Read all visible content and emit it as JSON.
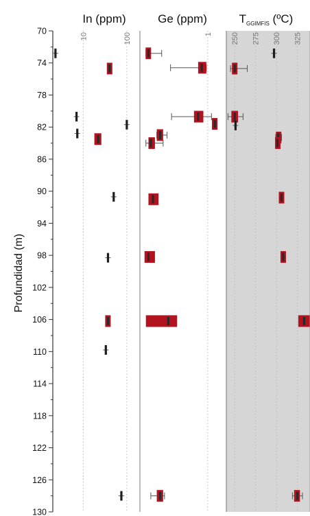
{
  "chart_data": {
    "type": "scatter",
    "ylabel": "Profundidad (m)",
    "ylim": [
      70,
      130
    ],
    "y_ticks": [
      70,
      74,
      78,
      82,
      86,
      90,
      94,
      98,
      102,
      106,
      110,
      114,
      118,
      122,
      126,
      130
    ],
    "y_reversed": true,
    "panels": [
      {
        "title": "In (ppm)",
        "x_scale": "log",
        "xlim": [
          2,
          200
        ],
        "x_ticks": [
          {
            "value": 10,
            "label": "10"
          },
          {
            "value": 100,
            "label": "100"
          }
        ],
        "points": [
          {
            "depth": 72.8,
            "x": 2.3,
            "style": "tick"
          },
          {
            "depth": 74.7,
            "x": 40,
            "style": "box",
            "xlow": 36,
            "xhigh": 45
          },
          {
            "depth": 80.7,
            "x": 7,
            "style": "tick"
          },
          {
            "depth": 81.7,
            "x": 100,
            "style": "tick"
          },
          {
            "depth": 82.8,
            "x": 7.3,
            "style": "tick"
          },
          {
            "depth": 83.5,
            "x": 22,
            "style": "box",
            "xlow": 18,
            "xhigh": 26
          },
          {
            "depth": 90.7,
            "x": 50,
            "style": "tick"
          },
          {
            "depth": 98.3,
            "x": 37,
            "style": "tick"
          },
          {
            "depth": 106.2,
            "x": 37,
            "style": "box",
            "xlow": 34,
            "xhigh": 40
          },
          {
            "depth": 109.8,
            "x": 33,
            "style": "tick"
          },
          {
            "depth": 128.0,
            "x": 75,
            "style": "tick"
          }
        ]
      },
      {
        "title": "Ge (ppm)",
        "x_scale": "log",
        "xlim": [
          0.08,
          2
        ],
        "x_ticks": [
          {
            "value": 1,
            "label": "1"
          }
        ],
        "points": [
          {
            "depth": 72.8,
            "x": 0.11,
            "style": "box",
            "xlow": 0.1,
            "xhigh": 0.12,
            "err_low": 0.1,
            "err_high": 0.18
          },
          {
            "depth": 74.6,
            "x": 0.8,
            "style": "box",
            "xlow": 0.7,
            "xhigh": 0.95,
            "err_low": 0.25,
            "err_high": 0.95
          },
          {
            "depth": 80.7,
            "x": 0.7,
            "style": "box",
            "xlow": 0.6,
            "xhigh": 0.85,
            "err_low": 0.26,
            "err_high": 1.15
          },
          {
            "depth": 81.6,
            "x": 1.3,
            "style": "box",
            "xlow": 1.2,
            "xhigh": 1.4
          },
          {
            "depth": 83.0,
            "x": 0.17,
            "style": "box",
            "xlow": 0.15,
            "xhigh": 0.19,
            "err_low": 0.15,
            "err_high": 0.22
          },
          {
            "depth": 84.0,
            "x": 0.12,
            "style": "box",
            "xlow": 0.11,
            "xhigh": 0.14,
            "err_low": 0.1,
            "err_high": 0.19
          },
          {
            "depth": 91.0,
            "x": 0.13,
            "style": "box",
            "xlow": 0.11,
            "xhigh": 0.16
          },
          {
            "depth": 98.2,
            "x": 0.11,
            "style": "box",
            "xlow": 0.095,
            "xhigh": 0.14
          },
          {
            "depth": 106.2,
            "x": 0.23,
            "style": "box",
            "xlow": 0.1,
            "xhigh": 0.32
          },
          {
            "depth": 128.0,
            "x": 0.17,
            "style": "box",
            "xlow": 0.15,
            "xhigh": 0.19,
            "err_low": 0.12,
            "err_high": 0.2
          }
        ]
      },
      {
        "title_main": "T",
        "title_sub": "GGIMFIS",
        "title_unit": " (ºC)",
        "x_scale": "linear",
        "xlim": [
          240,
          340
        ],
        "x_ticks": [
          {
            "value": 250,
            "label": "250"
          },
          {
            "value": 275,
            "label": "275"
          },
          {
            "value": 300,
            "label": "300"
          },
          {
            "value": 325,
            "label": "325"
          }
        ],
        "shaded": true,
        "points": [
          {
            "depth": 72.8,
            "x": 297,
            "style": "tick"
          },
          {
            "depth": 74.7,
            "x": 250,
            "style": "box",
            "xlow": 247,
            "xhigh": 253,
            "err_low": 245,
            "err_high": 265
          },
          {
            "depth": 80.7,
            "x": 250,
            "style": "box",
            "xlow": 246,
            "xhigh": 254,
            "err_low": 242,
            "err_high": 260
          },
          {
            "depth": 81.8,
            "x": 251,
            "style": "tick"
          },
          {
            "depth": 83.3,
            "x": 302,
            "style": "box",
            "xlow": 300,
            "xhigh": 305,
            "err_low": 299,
            "err_high": 306
          },
          {
            "depth": 84.0,
            "x": 301,
            "style": "box",
            "xlow": 299,
            "xhigh": 304
          },
          {
            "depth": 90.8,
            "x": 306,
            "style": "box",
            "xlow": 304,
            "xhigh": 308
          },
          {
            "depth": 98.2,
            "x": 308,
            "style": "box",
            "xlow": 306,
            "xhigh": 310
          },
          {
            "depth": 106.2,
            "x": 333,
            "style": "box",
            "xlow": 326,
            "xhigh": 340
          },
          {
            "depth": 128.0,
            "x": 325,
            "style": "box",
            "xlow": 321,
            "xhigh": 328,
            "err_low": 319,
            "err_high": 331
          }
        ]
      }
    ]
  }
}
